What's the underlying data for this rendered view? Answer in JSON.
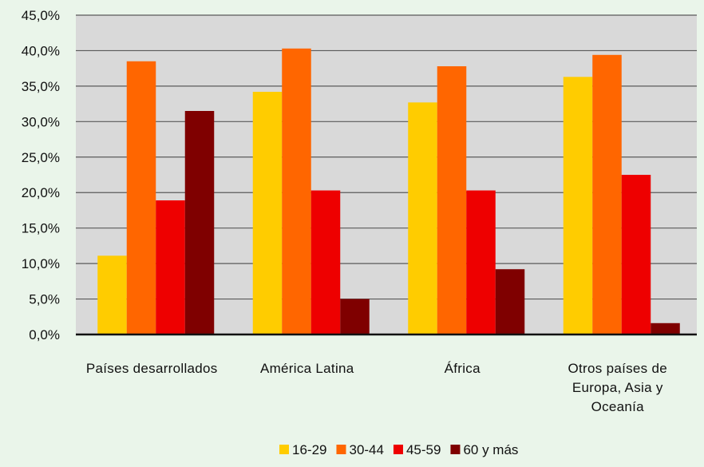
{
  "chart_data": {
    "type": "bar",
    "title": "",
    "xlabel": "",
    "ylabel": "",
    "ylim": [
      0,
      45
    ],
    "ytick_step": 5,
    "ytick_labels": [
      "0,0%",
      "5,0%",
      "10,0%",
      "15,0%",
      "20,0%",
      "25,0%",
      "30,0%",
      "35,0%",
      "40,0%",
      "45,0%"
    ],
    "grid": true,
    "legend_position": "bottom",
    "categories": [
      [
        "Países desarrollados"
      ],
      [
        "América Latina"
      ],
      [
        "África"
      ],
      [
        "Otros países de",
        "Europa, Asia y",
        "Oceanía"
      ]
    ],
    "series": [
      {
        "name": "16-29",
        "color": "#ffcc00",
        "values": [
          11.1,
          34.2,
          32.7,
          36.3
        ]
      },
      {
        "name": "30-44",
        "color": "#ff6600",
        "values": [
          38.5,
          40.3,
          37.8,
          39.4
        ]
      },
      {
        "name": "45-59",
        "color": "#ee0000",
        "values": [
          18.9,
          20.3,
          20.3,
          22.5
        ]
      },
      {
        "name": "60 y más",
        "color": "#7f0000",
        "values": [
          31.5,
          5.0,
          9.2,
          1.6
        ]
      }
    ],
    "plot_background": "#d9d9d9",
    "page_background": "#eaf5ea"
  }
}
